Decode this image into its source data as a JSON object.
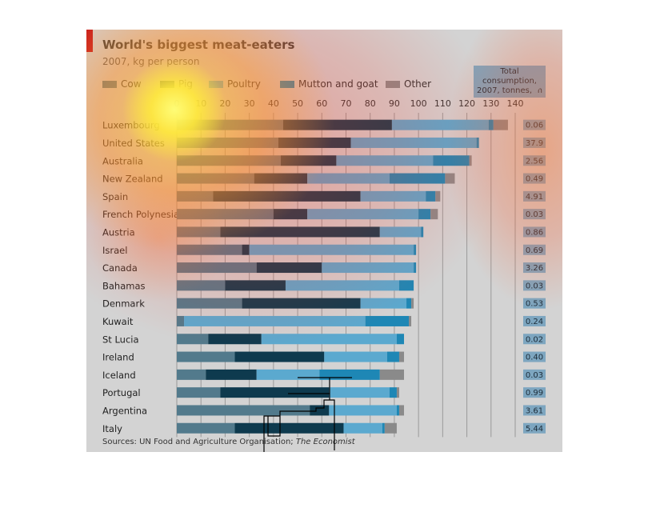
{
  "title": "World's biggest meat-eaters",
  "subtitle": "2007, kg per person",
  "total_header": [
    "Total consumption,",
    "2007, tonnes, m"
  ],
  "source": {
    "prefix": "Sources: UN Food and Agriculture Organisation;",
    "publication": "The Economist"
  },
  "colors": {
    "background": "#d3d3d3",
    "accent": "#c4161c",
    "cow": "#527a8c",
    "pig": "#0e3a4e",
    "poultry": "#5ba9cf",
    "mutton_and_goat": "#1e87b5",
    "other": "#8a8a8a",
    "total_box": "#7da6c0"
  },
  "chart_data": {
    "type": "bar",
    "orientation": "horizontal",
    "stacked": true,
    "title": "World's biggest meat-eaters",
    "subtitle": "2007, kg per person",
    "xlim": [
      0,
      140
    ],
    "xticks": [
      0,
      10,
      20,
      30,
      40,
      50,
      60,
      70,
      80,
      90,
      100,
      110,
      120,
      130,
      140
    ],
    "grid": true,
    "legend_position": "top",
    "categories": [
      "Luxembourg",
      "United States",
      "Australia",
      "New Zealand",
      "Spain",
      "French Polynesia",
      "Austria",
      "Israel",
      "Canada",
      "Bahamas",
      "Denmark",
      "Kuwait",
      "St Lucia",
      "Ireland",
      "Iceland",
      "Portugal",
      "Argentina",
      "Italy"
    ],
    "series": [
      {
        "name": "Cow",
        "values": [
          44,
          42,
          43,
          32,
          15,
          40,
          18,
          27,
          33,
          20,
          27,
          3,
          13,
          24,
          12,
          18,
          55,
          24
        ]
      },
      {
        "name": "Pig",
        "values": [
          45,
          30,
          23,
          22,
          61,
          14,
          66,
          3,
          27,
          25,
          49,
          0,
          22,
          37,
          21,
          45,
          8,
          45
        ]
      },
      {
        "name": "Poultry",
        "values": [
          40,
          52,
          40,
          34,
          27,
          46,
          17,
          68,
          38,
          47,
          19,
          75,
          56,
          26,
          26,
          25,
          28,
          16
        ]
      },
      {
        "name": "Mutton and goat",
        "values": [
          2,
          1,
          15,
          23,
          4,
          5,
          1,
          1,
          1,
          6,
          2,
          18,
          3,
          5,
          25,
          3,
          1,
          1
        ]
      },
      {
        "name": "Other",
        "values": [
          6,
          0,
          1,
          4,
          2,
          3,
          0,
          0,
          0,
          0,
          1,
          1,
          0,
          2,
          10,
          1,
          2,
          5
        ]
      }
    ],
    "total_consumption": [
      "0.06",
      "37.9",
      "2.56",
      "0.49",
      "4.91",
      "0.03",
      "0.86",
      "0.69",
      "3.26",
      "0.03",
      "0.53",
      "0.24",
      "0.02",
      "0.40",
      "0.03",
      "0.99",
      "3.61",
      "5.44"
    ]
  }
}
